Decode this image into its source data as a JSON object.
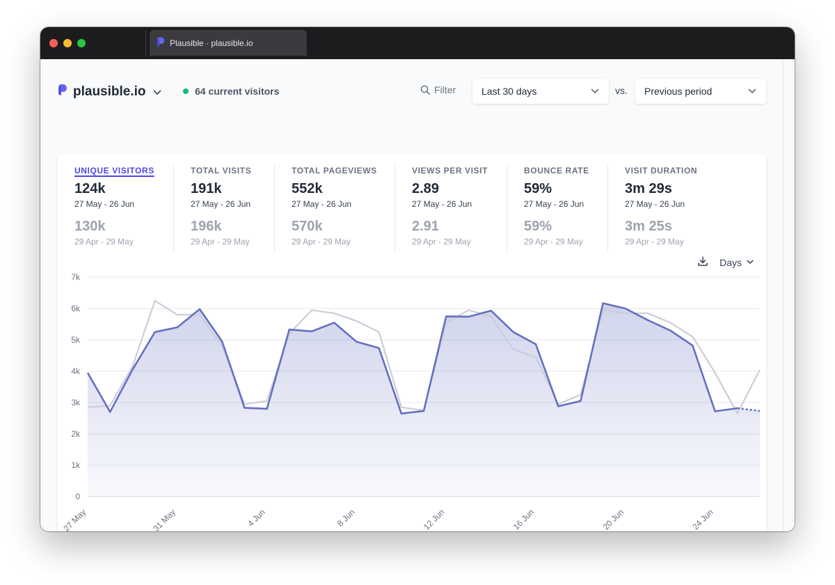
{
  "browser": {
    "tab_title": "Plausible · plausible.io"
  },
  "header": {
    "site_name": "plausible.io",
    "current_visitors": "64 current visitors",
    "filter_label": "Filter",
    "period": "Last 30 days",
    "vs_label": "vs.",
    "comparison": "Previous period"
  },
  "metrics": [
    {
      "label": "UNIQUE VISITORS",
      "value": "124k",
      "range": "27 May - 26 Jun",
      "prev_value": "130k",
      "prev_range": "29 Apr - 29 May",
      "active": true
    },
    {
      "label": "TOTAL VISITS",
      "value": "191k",
      "range": "27 May - 26 Jun",
      "prev_value": "196k",
      "prev_range": "29 Apr - 29 May"
    },
    {
      "label": "TOTAL PAGEVIEWS",
      "value": "552k",
      "range": "27 May - 26 Jun",
      "prev_value": "570k",
      "prev_range": "29 Apr - 29 May"
    },
    {
      "label": "VIEWS PER VISIT",
      "value": "2.89",
      "range": "27 May - 26 Jun",
      "prev_value": "2.91",
      "prev_range": "29 Apr - 29 May"
    },
    {
      "label": "BOUNCE RATE",
      "value": "59%",
      "range": "27 May - 26 Jun",
      "prev_value": "59%",
      "prev_range": "29 Apr - 29 May"
    },
    {
      "label": "VISIT DURATION",
      "value": "3m 29s",
      "range": "27 May - 26 Jun",
      "prev_value": "3m 25s",
      "prev_range": "29 Apr - 29 May"
    }
  ],
  "chart_controls": {
    "interval": "Days"
  },
  "colors": {
    "accent": "#6470c0",
    "previous": "#cbcdd8",
    "live_dot": "#10b981"
  },
  "chart_data": {
    "type": "line",
    "categories": [
      "27 May",
      "28 May",
      "29 May",
      "30 May",
      "31 May",
      "1 Jun",
      "2 Jun",
      "3 Jun",
      "4 Jun",
      "5 Jun",
      "6 Jun",
      "7 Jun",
      "8 Jun",
      "9 Jun",
      "10 Jun",
      "11 Jun",
      "12 Jun",
      "13 Jun",
      "14 Jun",
      "15 Jun",
      "16 Jun",
      "17 Jun",
      "18 Jun",
      "19 Jun",
      "20 Jun",
      "21 Jun",
      "22 Jun",
      "23 Jun",
      "24 Jun",
      "25 Jun",
      "26 Jun"
    ],
    "tick_labels": [
      "27 May",
      "31 May",
      "4 Jun",
      "8 Jun",
      "12 Jun",
      "16 Jun",
      "20 Jun",
      "24 Jun"
    ],
    "tick_every": 4,
    "ylim": [
      0,
      7000
    ],
    "y_ticks": [
      0,
      1000,
      2000,
      3000,
      4000,
      5000,
      6000,
      7000
    ],
    "y_tick_labels": [
      "0",
      "1k",
      "2k",
      "3k",
      "4k",
      "5k",
      "6k",
      "7k"
    ],
    "grid": true,
    "series": [
      {
        "values": [
          3950,
          2700,
          4050,
          5250,
          5400,
          5980,
          4950,
          2830,
          2800,
          5330,
          5270,
          5550,
          4940,
          4740,
          2650,
          2730,
          5750,
          5740,
          5930,
          5250,
          4860,
          2880,
          3050,
          6170,
          6000,
          5630,
          5300,
          4820,
          2720,
          2820,
          2730
        ],
        "dashed_last_segment": true
      },
      {
        "values": [
          2850,
          2900,
          4150,
          6250,
          5800,
          5800,
          4800,
          2950,
          3050,
          5200,
          5950,
          5850,
          5600,
          5250,
          2850,
          2750,
          5550,
          5950,
          5750,
          4700,
          4450,
          2950,
          3250,
          5950,
          5850,
          5850,
          5550,
          5100,
          3950,
          2650,
          4050
        ]
      }
    ]
  }
}
